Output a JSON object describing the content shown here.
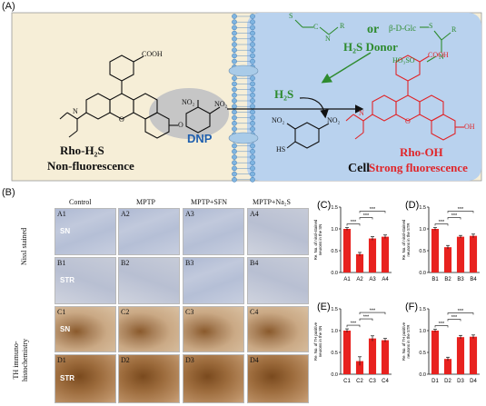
{
  "panel_a": {
    "label": "(A)",
    "probe_name": "Rho-H₂S",
    "probe_state": "Non-fluorescence",
    "dnp_label": "DNP",
    "product_name": "Rho-OH",
    "product_state": "Strong fluorescence",
    "or_label": "or",
    "donor_label": "H₂S Donor",
    "h2s_label": "H₂S",
    "cell_label": "Cell",
    "beta_label": "β-D-Glc",
    "ho3so_label": "HO₃SO",
    "cooh": "COOH",
    "no2": "NO₂",
    "o_label": "O",
    "oh_label": "OH",
    "hs_label": "HS",
    "n_label": "N",
    "s_label": "S",
    "r_label": "R",
    "c_label": "C",
    "colors": {
      "cell_bg": "#b9d2ee",
      "outer_bg": "#f6eed7",
      "red": "#e0262a",
      "green": "#2e8b2e",
      "blue": "#1f5fae"
    }
  },
  "panel_b": {
    "label": "(B)",
    "columns": [
      "Control",
      "MPTP",
      "MPTP+SFN",
      "MPTP+Na₂S"
    ],
    "row_group_1": "Nissl stained",
    "row_group_2": "TH immuno-\nhistochemistry",
    "rows": [
      {
        "cells": [
          "A1",
          "A2",
          "A3",
          "A4"
        ],
        "region": "SN"
      },
      {
        "cells": [
          "B1",
          "B2",
          "B3",
          "B4"
        ],
        "region": "STR"
      },
      {
        "cells": [
          "C1",
          "C2",
          "C3",
          "C4"
        ],
        "region": "SN"
      },
      {
        "cells": [
          "D1",
          "D2",
          "D3",
          "D4"
        ],
        "region": "STR"
      }
    ]
  },
  "chart_data": [
    {
      "panel": "(C)",
      "type": "bar",
      "ylabel": "Re. No. of nissl-stained neurons in the SN",
      "categories": [
        "A1",
        "A2",
        "A3",
        "A4"
      ],
      "values": [
        1.0,
        0.42,
        0.78,
        0.82
      ],
      "errors": [
        0.03,
        0.04,
        0.04,
        0.04
      ],
      "ylim": [
        0.0,
        1.5
      ],
      "yticks": [
        "0.0",
        "0.5",
        "1.0",
        "1.5"
      ],
      "significance": [
        "***",
        "***",
        "***"
      ]
    },
    {
      "panel": "(D)",
      "type": "bar",
      "ylabel": "Re. No. of nissl-stained neurons in the STR",
      "categories": [
        "B1",
        "B2",
        "B3",
        "B4"
      ],
      "values": [
        1.0,
        0.58,
        0.82,
        0.84
      ],
      "errors": [
        0.03,
        0.04,
        0.03,
        0.04
      ],
      "ylim": [
        0.0,
        1.5
      ],
      "yticks": [
        "0.0",
        "0.5",
        "1.0",
        "1.5"
      ],
      "significance": [
        "***",
        "***",
        "***"
      ]
    },
    {
      "panel": "(E)",
      "type": "bar",
      "ylabel": "Re. No. of TH positive neurons in the SN",
      "categories": [
        "C1",
        "C2",
        "C3",
        "C4"
      ],
      "values": [
        1.0,
        0.3,
        0.82,
        0.78
      ],
      "errors": [
        0.04,
        0.1,
        0.06,
        0.04
      ],
      "ylim": [
        0.0,
        1.5
      ],
      "yticks": [
        "0.0",
        "0.5",
        "1.0",
        "1.5"
      ],
      "significance": [
        "***",
        "***",
        "***"
      ]
    },
    {
      "panel": "(F)",
      "type": "bar",
      "ylabel": "Re. No. of TH positive neurons in the STR",
      "categories": [
        "D1",
        "D2",
        "D3",
        "D4"
      ],
      "values": [
        1.0,
        0.35,
        0.85,
        0.86
      ],
      "errors": [
        0.03,
        0.04,
        0.04,
        0.04
      ],
      "ylim": [
        0.0,
        1.5
      ],
      "yticks": [
        "0.0",
        "0.5",
        "1.0",
        "1.5"
      ],
      "significance": [
        "***",
        "***",
        "***"
      ]
    }
  ]
}
